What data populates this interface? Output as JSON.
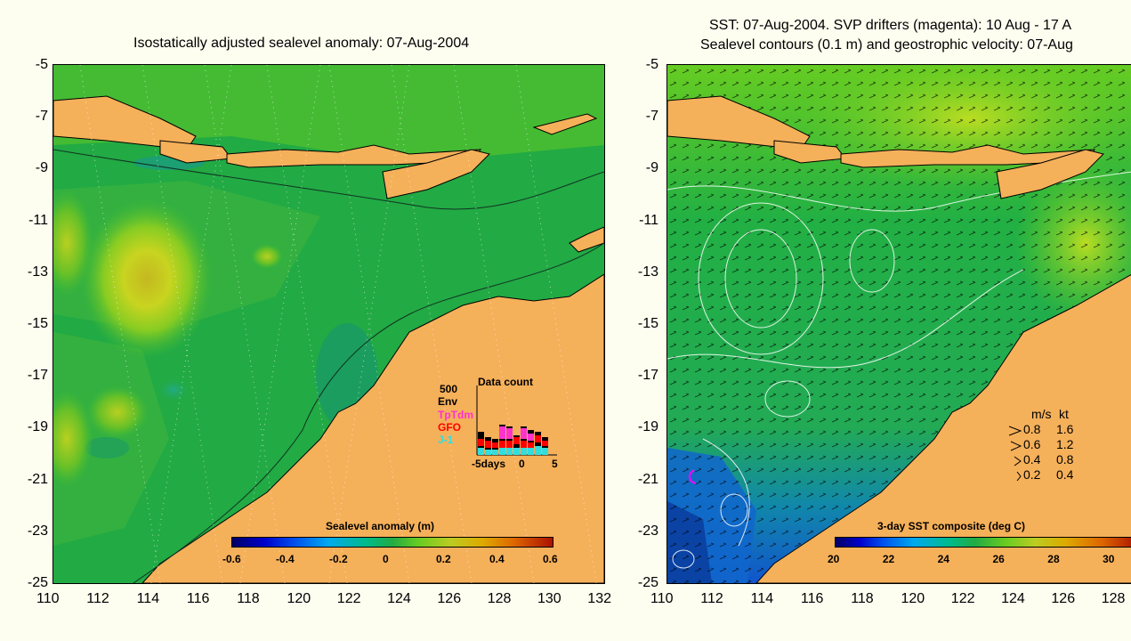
{
  "left_map": {
    "title": "Isostatically adjusted sealevel anomaly: 07-Aug-2004",
    "x_ticks": [
      "110",
      "112",
      "114",
      "116",
      "118",
      "120",
      "122",
      "124",
      "126",
      "128",
      "130",
      "132"
    ],
    "y_ticks": [
      "-5",
      "-7",
      "-9",
      "-11",
      "-13",
      "-15",
      "-17",
      "-19",
      "-21",
      "-23",
      "-25"
    ],
    "colorbar": {
      "title": "Sealevel anomaly (m)",
      "labels": [
        "-0.6",
        "-0.4",
        "-0.2",
        "0",
        "0.2",
        "0.4",
        "0.6"
      ],
      "range": [
        -0.6,
        0.6
      ]
    },
    "inset": {
      "title": "Data count",
      "max_label": "500",
      "series_labels": [
        "Env",
        "TpTdm",
        "GFO",
        "J-1"
      ],
      "series_colors": [
        "#000000",
        "#ff33cc",
        "#ff0000",
        "#33dddd"
      ],
      "x_min_label": "-5days",
      "x_mid_label": "0",
      "x_max_label": "5"
    }
  },
  "right_map": {
    "title_line1": "SST: 07-Aug-2004. SVP drifters (magenta): 10 Aug - 17 A",
    "title_line2": "Sealevel contours (0.1 m) and geostrophic velocity: 07-Aug",
    "x_ticks": [
      "110",
      "112",
      "114",
      "116",
      "118",
      "120",
      "122",
      "124",
      "126",
      "128"
    ],
    "y_ticks": [
      "-5",
      "-7",
      "-9",
      "-11",
      "-13",
      "-15",
      "-17",
      "-19",
      "-21",
      "-23",
      "-25"
    ],
    "colorbar": {
      "title": "3-day SST composite (deg C)",
      "labels": [
        "20",
        "22",
        "24",
        "26",
        "28",
        "30"
      ],
      "range": [
        20,
        31
      ]
    },
    "velocity_legend": {
      "header_ms": "m/s",
      "header_kt": "kt",
      "rows": [
        {
          "ms": "0.8",
          "kt": "1.6"
        },
        {
          "ms": "0.6",
          "kt": "1.2"
        },
        {
          "ms": "0.4",
          "kt": "0.8"
        },
        {
          "ms": "0.2",
          "kt": "0.4"
        }
      ]
    }
  },
  "colors": {
    "background": "#fdfdf0",
    "land": "#f5b05a",
    "ocean_mid": "#22aa44",
    "anomaly_high": "#c8d020"
  }
}
